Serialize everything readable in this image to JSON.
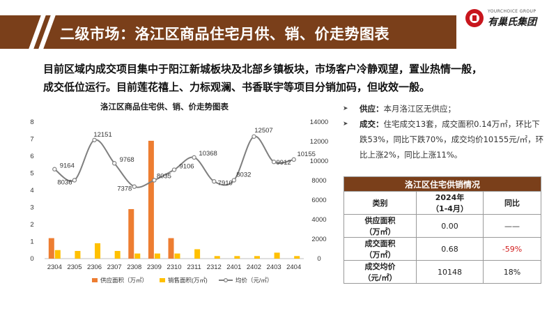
{
  "header": {
    "title": "二级市场：洛江区商品住宅月供、销、价走势图表",
    "logo_en": "YOURCHOICE GROUP",
    "logo_cn": "有巢氏集团"
  },
  "summary": {
    "line1": "目前区域内成交项目集中于阳江新城板块及北部乡镇板块，市场客户冷静观望，置业热情一般，",
    "line2": "成交低位运行。目前莲花禧上、力标观澜、书香联宇等项目分销加码，但收效一般。"
  },
  "notes": {
    "arrow": "➤",
    "supply_label": "供应：",
    "supply_text": "本月洛江区无供应；",
    "deal_label": "成交：",
    "deal_line1": "住宅成交13套，成交面积0.14万㎡，环比下",
    "deal_line2": "跌53%，同比下跌70%，成交均价10155元/㎡，环",
    "deal_line3": "比上涨2%，同比上涨11%。"
  },
  "table": {
    "title": "洛江区住宅供销情况",
    "headers": {
      "category": "类别",
      "period_line1": "2024年",
      "period_line2": "（1-4月）",
      "yoy": "同比"
    },
    "rows": [
      {
        "label_line1": "供应面积",
        "label_line2": "（万㎡）",
        "value": "0.00",
        "yoy": "——"
      },
      {
        "label_line1": "成交面积",
        "label_line2": "（万㎡）",
        "value": "0.68",
        "yoy": "-59%"
      },
      {
        "label_line1": "成交均价",
        "label_line2": "（元/㎡）",
        "value": "10148",
        "yoy": "18%"
      }
    ]
  },
  "chart_data": {
    "type": "bar",
    "title": "洛江区商品住宅供、销、价走势图表",
    "categories": [
      "2304",
      "2305",
      "2306",
      "2307",
      "2308",
      "2309",
      "2310",
      "2311",
      "2312",
      "2401",
      "2402",
      "2403",
      "2404"
    ],
    "series": [
      {
        "name": "供应面积（万㎡）",
        "kind": "bar",
        "axis": "left",
        "color": "#ed7d31",
        "values": [
          1.2,
          0,
          0,
          0,
          2.9,
          6.9,
          1.2,
          0,
          0,
          0,
          0,
          0,
          0
        ]
      },
      {
        "name": "销售面积(万㎡)",
        "kind": "bar",
        "axis": "left",
        "color": "#ffc000",
        "values": [
          0.5,
          0.45,
          0.9,
          0.45,
          0.3,
          0.3,
          0.3,
          0.55,
          0.15,
          0.15,
          0.15,
          0.35,
          0.15
        ]
      },
      {
        "name": "均价（元/㎡）",
        "kind": "line",
        "axis": "right",
        "color": "#7f7f7f",
        "values": [
          9164,
          8036,
          12151,
          9768,
          7378,
          8035,
          9106,
          10368,
          7910,
          8032,
          12507,
          9912,
          10155
        ]
      }
    ],
    "left_axis": {
      "min": 0,
      "max": 8,
      "ticks": [
        "0",
        "1",
        "2",
        "3",
        "4",
        "5",
        "6",
        "7",
        "8"
      ]
    },
    "right_axis": {
      "min": 0,
      "max": 14000,
      "ticks": [
        "0",
        "2000",
        "4000",
        "6000",
        "8000",
        "10000",
        "12000",
        "14000"
      ]
    },
    "price_labels": [
      "9164",
      "8036",
      "12151",
      "9768",
      "7378",
      "8035",
      "9106",
      "10368",
      "7910",
      "8032",
      "12507",
      "9912",
      "10155"
    ],
    "legend_position": "bottom",
    "grid": false
  }
}
